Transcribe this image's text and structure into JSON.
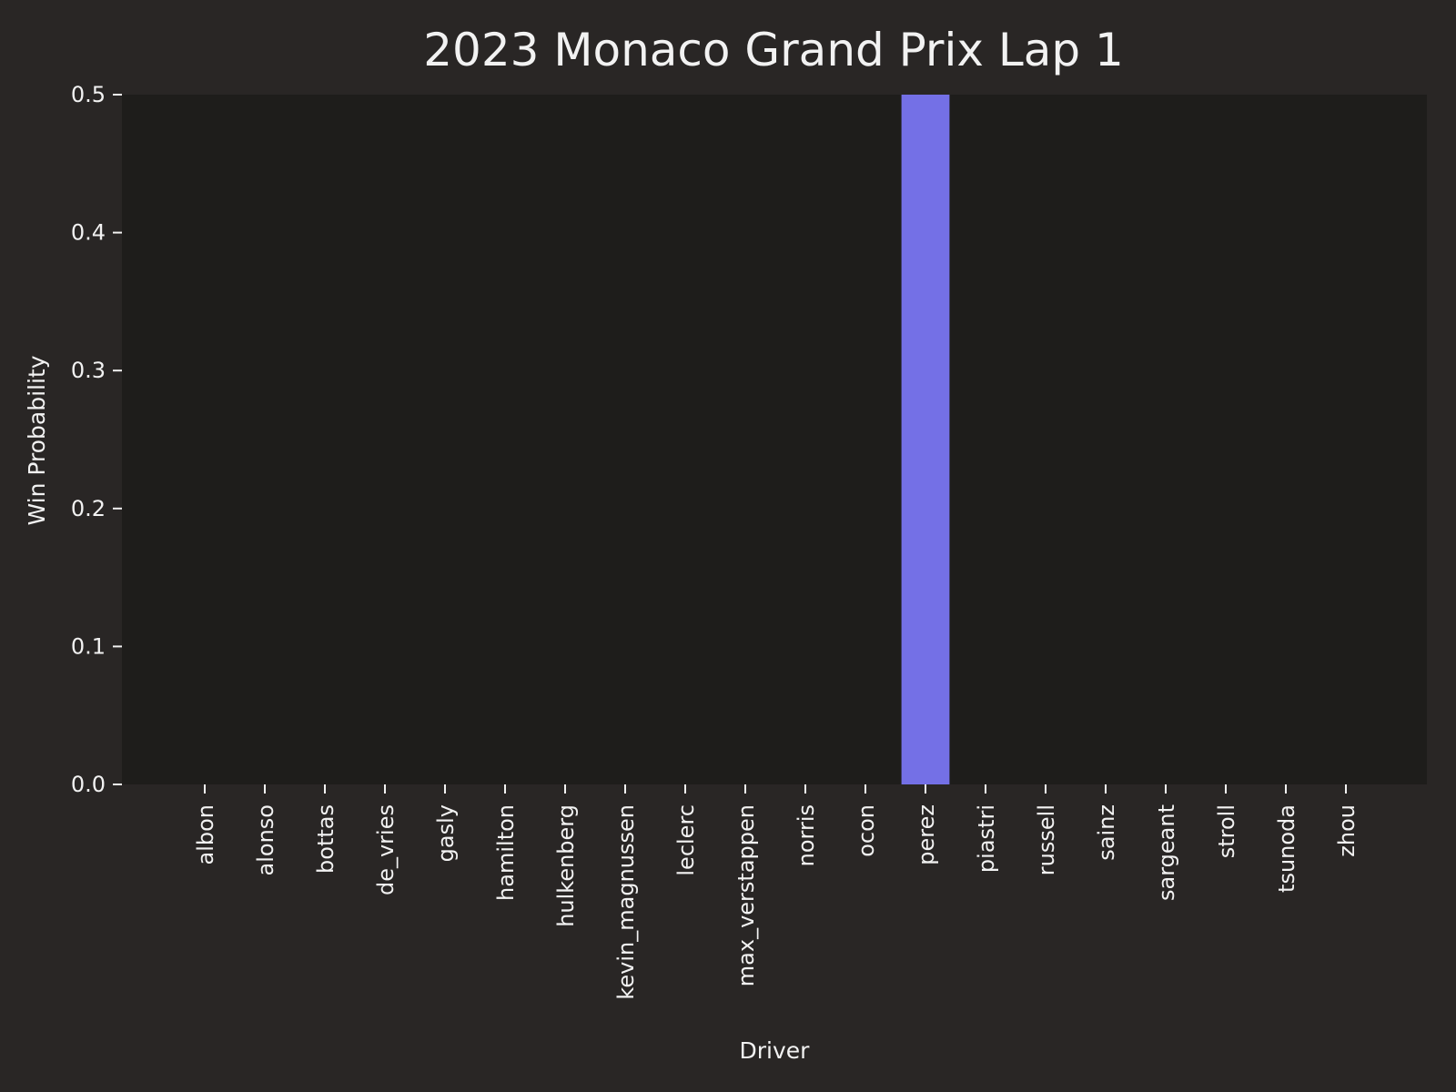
{
  "chart_data": {
    "type": "bar",
    "title": "2023 Monaco Grand Prix Lap 1",
    "xlabel": "Driver",
    "ylabel": "Win Probability",
    "ylim": [
      0,
      0.5
    ],
    "yticks": [
      "0.0",
      "0.1",
      "0.2",
      "0.3",
      "0.4",
      "0.5"
    ],
    "grid": false,
    "legend": "none",
    "categories": [
      "albon",
      "alonso",
      "bottas",
      "de_vries",
      "gasly",
      "hamilton",
      "hulkenberg",
      "kevin_magnussen",
      "leclerc",
      "max_verstappen",
      "norris",
      "ocon",
      "perez",
      "piastri",
      "russell",
      "sainz",
      "sargeant",
      "stroll",
      "tsunoda",
      "zhou"
    ],
    "values": [
      0,
      0,
      0,
      0,
      0,
      0,
      0,
      0,
      0,
      0,
      0,
      0,
      0.5,
      0,
      0,
      0,
      0,
      0,
      0,
      0
    ],
    "colors": {
      "background": "#292625",
      "plot_background": "#1e1d1b",
      "bar": "#7470e6",
      "text": "#f2f2f2",
      "tick": "#f2f2f2"
    }
  }
}
